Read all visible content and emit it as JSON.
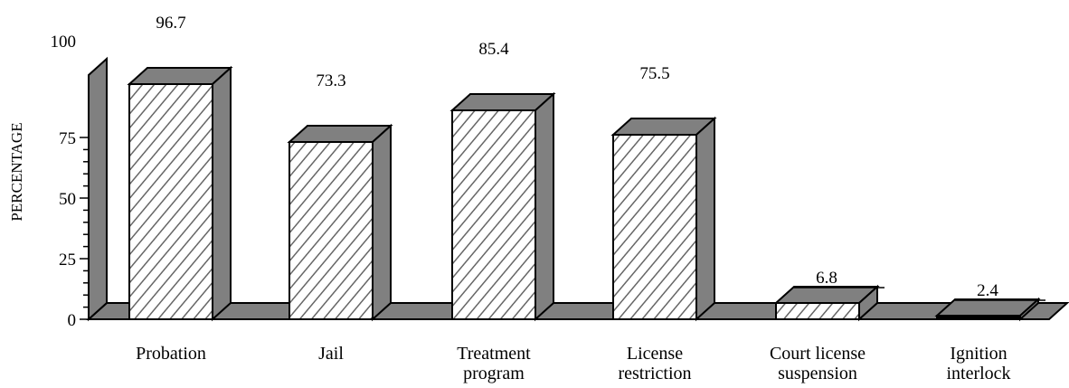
{
  "chart_data": {
    "type": "bar",
    "categories": [
      [
        "Probation"
      ],
      [
        "Jail"
      ],
      [
        "Treatment",
        "program"
      ],
      [
        "License",
        "restriction"
      ],
      [
        "Court license",
        "suspension"
      ],
      [
        "Ignition",
        "interlock"
      ]
    ],
    "values": [
      96.7,
      73.3,
      85.4,
      75.5,
      6.8,
      2.4
    ],
    "value_labels": [
      "96.7",
      "73.3",
      "85.4",
      "75.5",
      "6.8",
      "2.4"
    ],
    "ylabel": "PERCENTAGE",
    "ylim": [
      0,
      100
    ],
    "yticks": [
      "0",
      "25",
      "50",
      "75",
      "100"
    ],
    "grid": false,
    "colors": {
      "side": "#808080",
      "top": "#808080",
      "front": "#ffffff",
      "hatch": "#666666",
      "outline": "#000000",
      "small_bar_front": "#000000"
    }
  }
}
